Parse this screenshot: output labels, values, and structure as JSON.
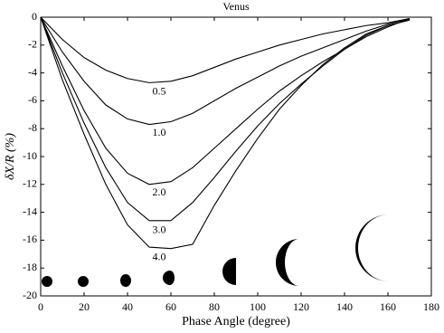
{
  "chart_data": {
    "type": "line",
    "title": "Venus",
    "x_label": "Phase Angle (degree)",
    "y_label": "δX/R (%)",
    "x": [
      0,
      10,
      20,
      30,
      40,
      50,
      60,
      70,
      80,
      90,
      100,
      110,
      120,
      130,
      140,
      150,
      160,
      170
    ],
    "series": [
      {
        "name": "0.5",
        "color": "#000000",
        "values": [
          0,
          -1.6,
          -2.9,
          -3.8,
          -4.4,
          -4.7,
          -4.6,
          -4.2,
          -3.6,
          -3.0,
          -2.5,
          -2.0,
          -1.6,
          -1.2,
          -0.9,
          -0.6,
          -0.4,
          -0.1
        ]
      },
      {
        "name": "1.0",
        "color": "#000000",
        "values": [
          0,
          -2.5,
          -4.6,
          -6.3,
          -7.3,
          -7.7,
          -7.5,
          -6.9,
          -6.0,
          -5.1,
          -4.3,
          -3.5,
          -2.8,
          -2.2,
          -1.6,
          -1.0,
          -0.5,
          -0.1
        ]
      },
      {
        "name": "2.0",
        "color": "#000000",
        "values": [
          0,
          -3.5,
          -6.7,
          -9.4,
          -11.2,
          -12.0,
          -11.8,
          -10.8,
          -9.4,
          -8.0,
          -6.6,
          -5.3,
          -4.2,
          -3.2,
          -2.3,
          -1.4,
          -0.7,
          -0.1
        ]
      },
      {
        "name": "3.0",
        "color": "#000000",
        "values": [
          0,
          -4.0,
          -7.6,
          -10.8,
          -13.3,
          -14.6,
          -14.6,
          -13.3,
          -11.5,
          -9.6,
          -7.8,
          -6.2,
          -4.8,
          -3.5,
          -2.3,
          -1.3,
          -0.6,
          -0.2
        ]
      },
      {
        "name": "4.0",
        "color": "#000000",
        "values": [
          0,
          -4.5,
          -8.4,
          -12.0,
          -14.9,
          -16.5,
          -16.6,
          -16.3,
          -13.5,
          -11.0,
          -8.7,
          -6.6,
          -4.9,
          -3.4,
          -2.2,
          -1.2,
          -0.6,
          -0.2
        ]
      }
    ],
    "xlim": [
      0,
      180
    ],
    "xticks": [
      0,
      20,
      40,
      60,
      80,
      100,
      120,
      140,
      160,
      180
    ],
    "ylim": [
      -20,
      0
    ],
    "yticks": [
      -20,
      -18,
      -16,
      -14,
      -12,
      -10,
      -8,
      -6,
      -4,
      -2,
      0
    ]
  }
}
